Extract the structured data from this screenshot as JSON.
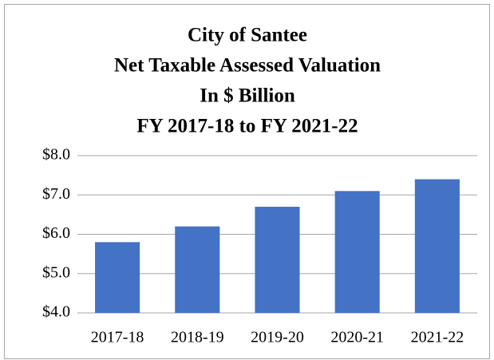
{
  "chart_data": {
    "type": "bar",
    "title": [
      "City of Santee",
      "Net Taxable Assessed Valuation",
      "In $ Billion",
      "FY 2017-18 to FY 2021-22"
    ],
    "categories": [
      "2017-18",
      "2018-19",
      "2019-20",
      "2020-21",
      "2021-22"
    ],
    "values": [
      5.8,
      6.2,
      6.7,
      7.1,
      7.4
    ],
    "color": "#4472c4",
    "ylim": [
      4,
      8
    ],
    "yticks": [
      {
        "value": 4,
        "label": "$4.0"
      },
      {
        "value": 5,
        "label": "$5.0"
      },
      {
        "value": 6,
        "label": "$6.0"
      },
      {
        "value": 7,
        "label": "$7.0"
      },
      {
        "value": 8,
        "label": "$8.0"
      }
    ],
    "grid": true
  }
}
